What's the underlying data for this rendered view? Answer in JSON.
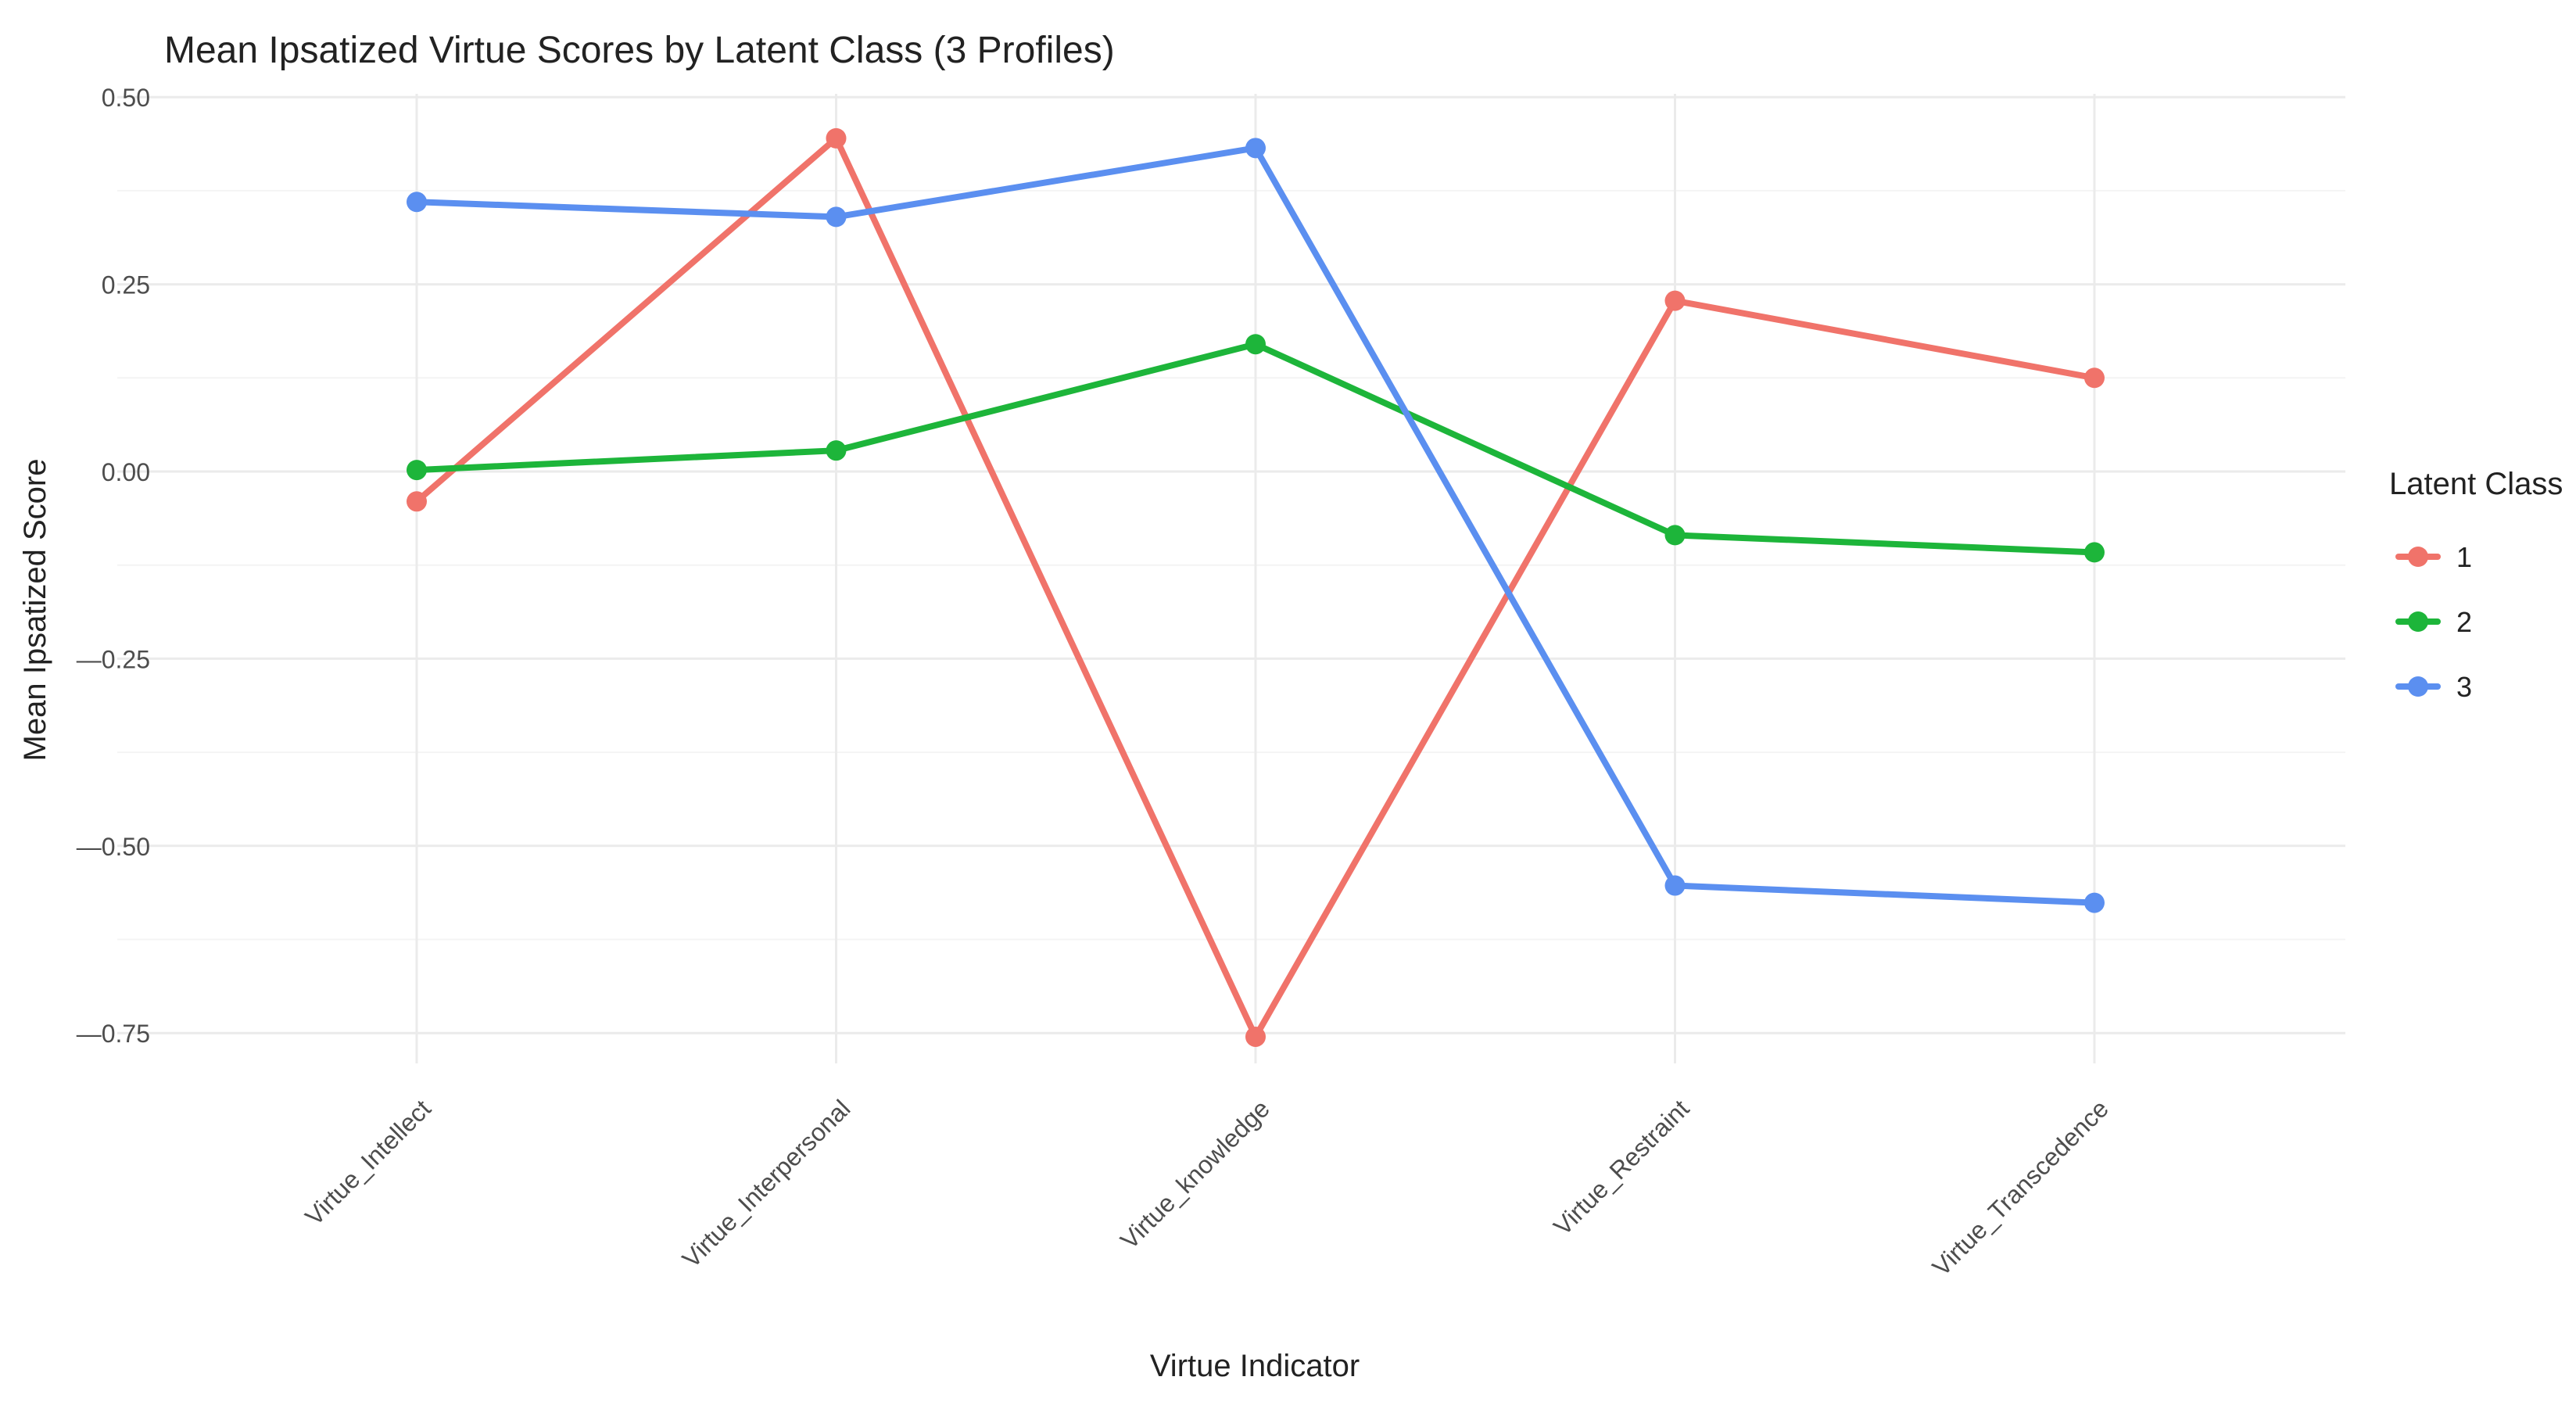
{
  "chart_data": {
    "type": "line",
    "title": "Mean Ipsatized Virtue Scores by Latent Class (3 Profiles)",
    "xlabel": "Virtue Indicator",
    "ylabel": "Mean Ipsatized Score",
    "categories": [
      "Virtue_Intellect",
      "Virtue_Interpersonal",
      "Virtue_knowledge",
      "Virtue_Restraint",
      "Virtue_Transcedence"
    ],
    "y_ticks": [
      0.5,
      0.25,
      0.0,
      -0.25,
      -0.5,
      -0.75
    ],
    "y_tick_labels": [
      "0.50",
      "0.25",
      "0.00",
      "—0.25",
      "—0.50",
      "—0.75"
    ],
    "ylim": [
      -0.8,
      0.5
    ],
    "grid": true,
    "legend": {
      "title": "Latent Class",
      "placement": "right"
    },
    "series": [
      {
        "name": "1",
        "color": "#F0736A",
        "values": [
          -0.04,
          0.445,
          -0.755,
          0.228,
          0.125
        ]
      },
      {
        "name": "2",
        "color": "#1DB53A",
        "values": [
          0.002,
          0.028,
          0.17,
          -0.085,
          -0.108
        ]
      },
      {
        "name": "3",
        "color": "#5B8FF0",
        "values": [
          0.36,
          0.34,
          0.432,
          -0.553,
          -0.576
        ]
      }
    ]
  }
}
